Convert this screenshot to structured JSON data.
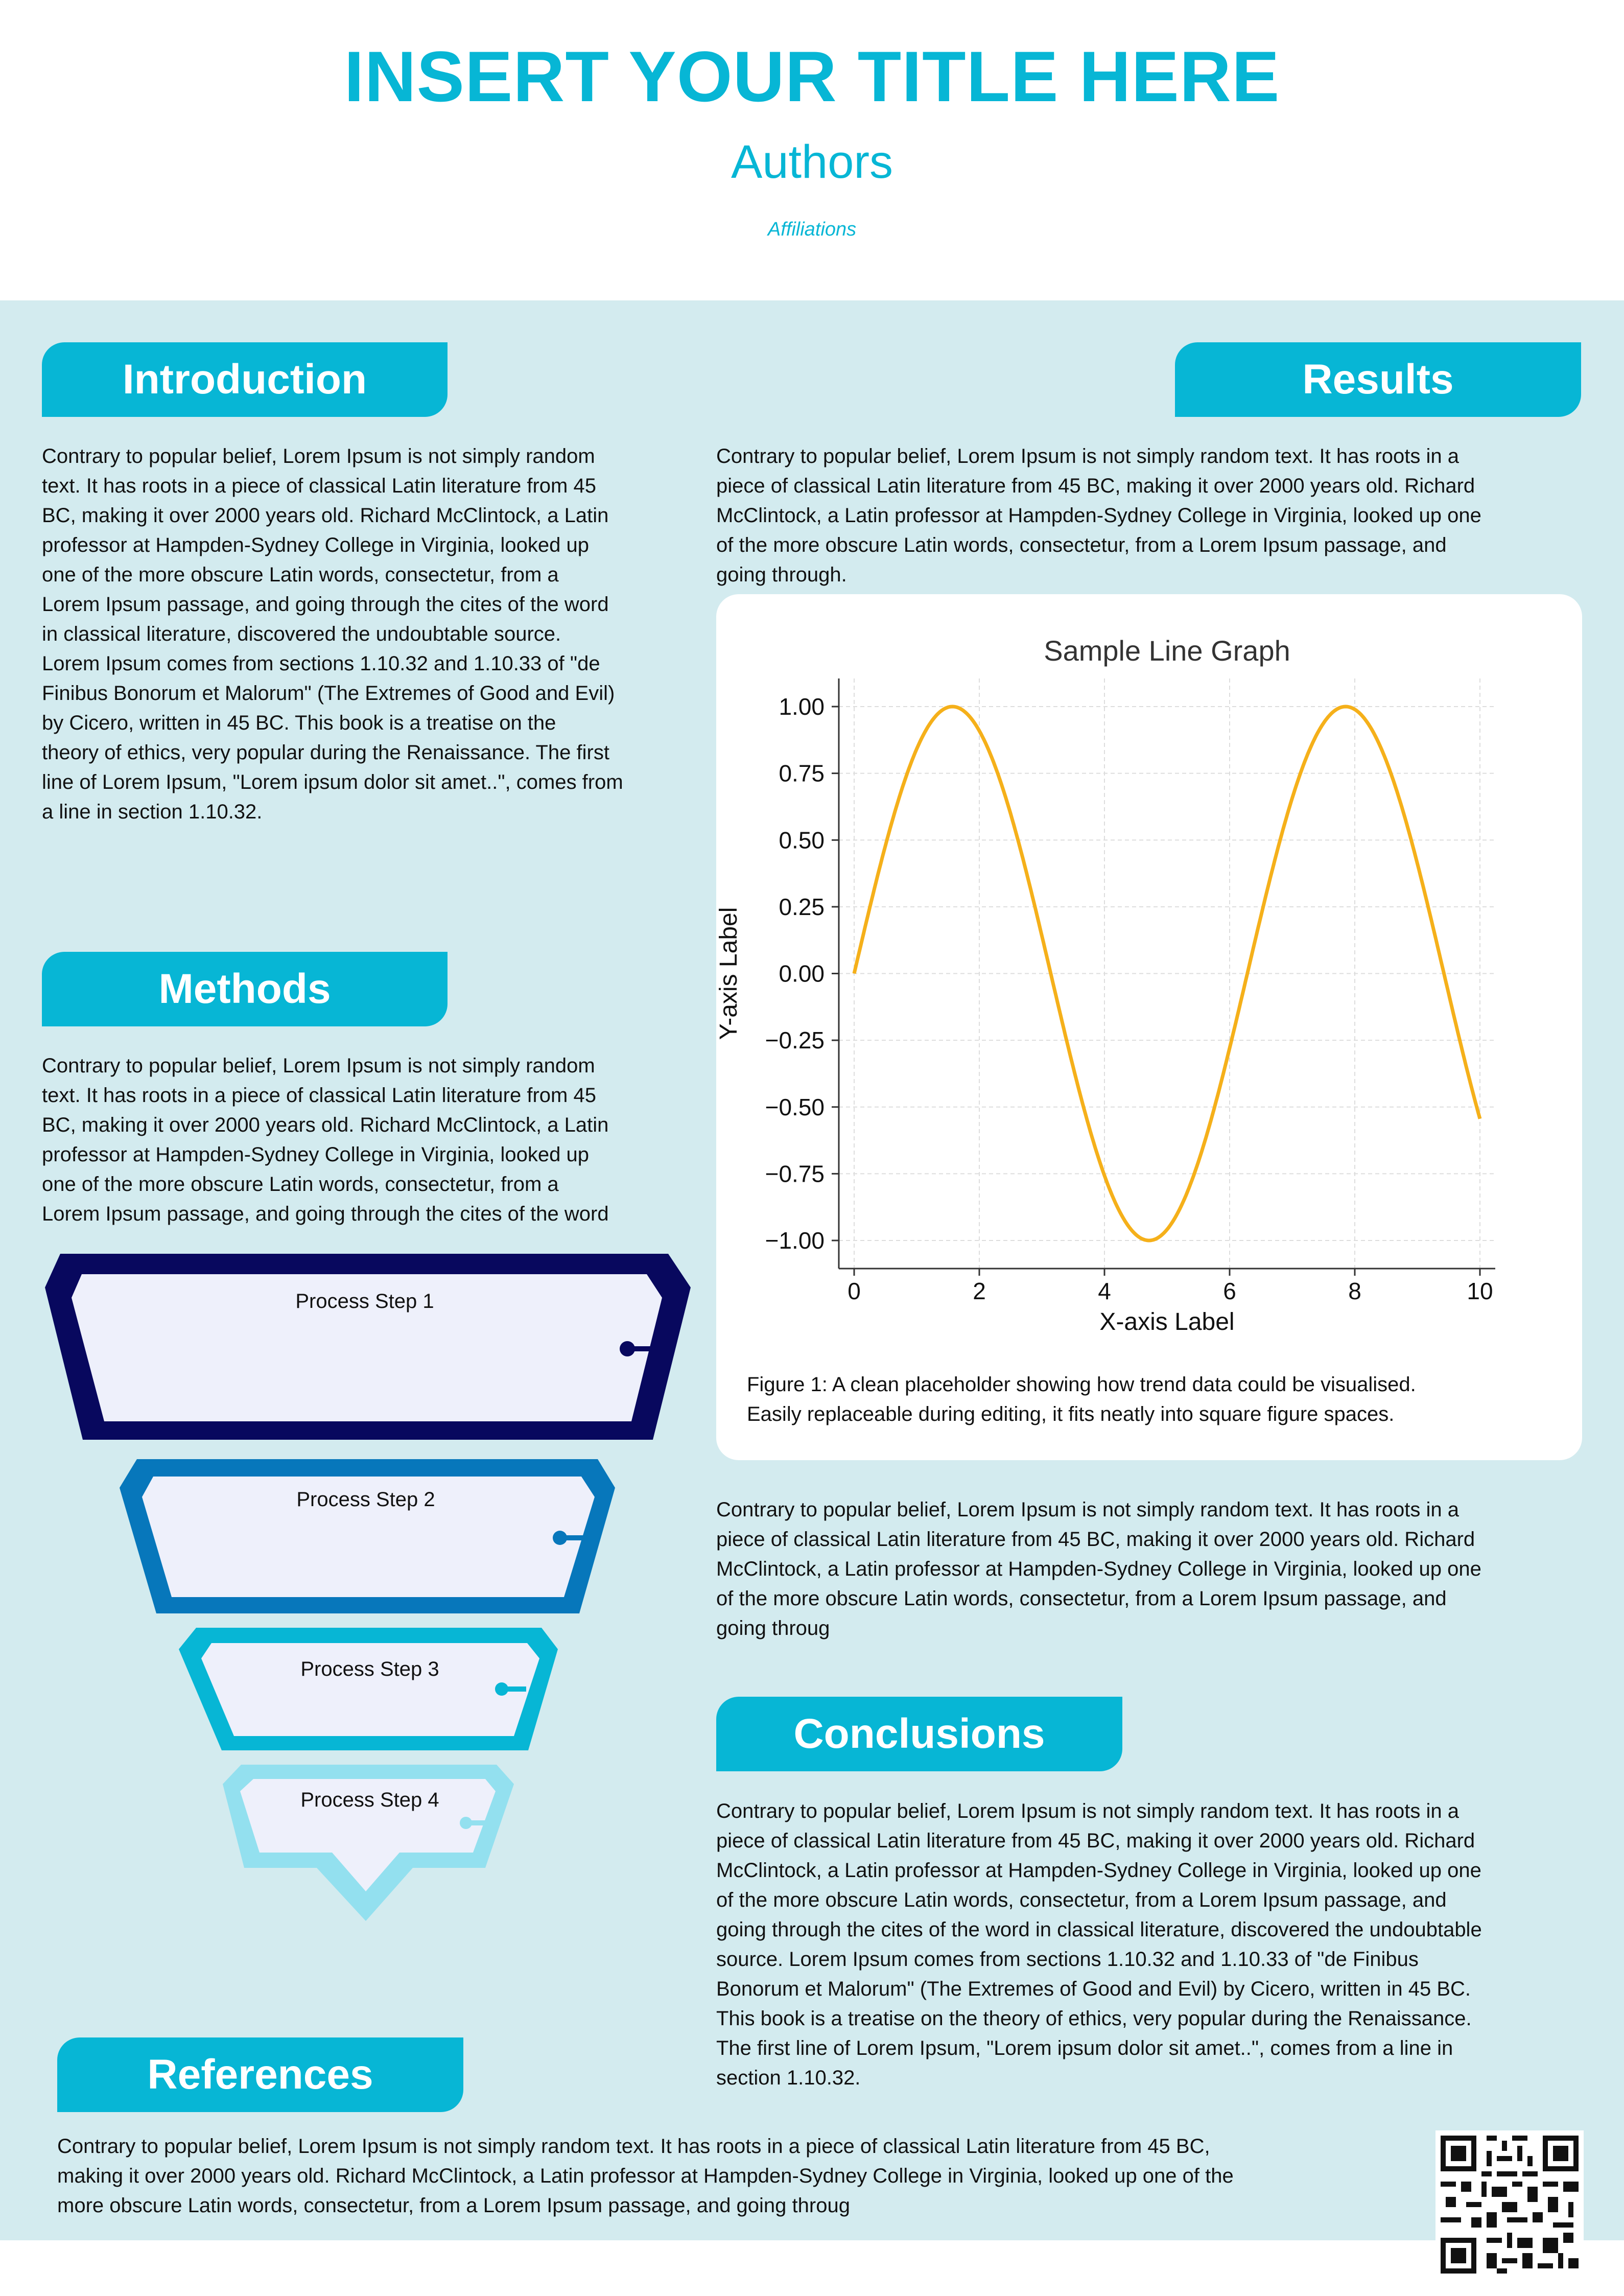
{
  "header": {
    "title": "INSERT YOUR TITLE HERE",
    "authors": "Authors",
    "affiliations": "Affiliations"
  },
  "colors": {
    "accent": "#07b6d5",
    "panel_bg": "#d3ebef",
    "funnel_step1": "#08085e",
    "funnel_step2": "#0777bb",
    "funnel_step3": "#07b6d5",
    "funnel_step4": "#93e0ef",
    "funnel_fill": "#eef0fb",
    "line": "#f5b01a"
  },
  "introduction": {
    "heading": "Introduction",
    "lines": [
      "Contrary to popular belief, Lorem Ipsum is not simply random",
      "text. It has roots in a piece of classical Latin literature from 45",
      "BC, making it over 2000 years old. Richard McClintock, a Latin",
      "professor at Hampden-Sydney College in Virginia, looked up",
      "one of the more obscure Latin words, consectetur, from a",
      "Lorem Ipsum passage, and going through the cites of the word",
      "in classical literature, discovered the undoubtable source.",
      "Lorem Ipsum comes from sections 1.10.32 and 1.10.33 of \"de",
      "Finibus Bonorum et Malorum\" (The Extremes of Good and Evil)",
      "by Cicero, written in 45 BC. This book is a treatise on the",
      "theory of ethics, very popular during the Renaissance. The first",
      "line of Lorem Ipsum, \"Lorem ipsum dolor sit amet..\", comes from",
      "a line in section 1.10.32."
    ]
  },
  "methods": {
    "heading": "Methods",
    "lines": [
      "Contrary to popular belief, Lorem Ipsum is not simply random",
      "text. It has roots in a piece of classical Latin literature from 45",
      "BC, making it over 2000 years old. Richard McClintock, a Latin",
      "professor at Hampden-Sydney College in Virginia, looked up",
      "one of the more obscure Latin words, consectetur, from a",
      "Lorem Ipsum passage, and going through the cites of the word"
    ],
    "steps": [
      "Process Step 1",
      "Process Step 2",
      "Process Step 3",
      "Process Step 4"
    ]
  },
  "results": {
    "heading": "Results",
    "lines_top": [
      "Contrary to popular belief, Lorem Ipsum is not simply random text. It has roots in a",
      "piece of classical Latin literature from 45 BC, making it over 2000 years old. Richard",
      "McClintock, a Latin professor at Hampden-Sydney College in Virginia, looked up one",
      "of the more obscure Latin words, consectetur, from a Lorem Ipsum passage, and",
      "going through."
    ],
    "caption_lines": [
      "Figure 1: A clean placeholder showing how trend data could be visualised.",
      "Easily replaceable during editing, it fits neatly into square figure spaces."
    ],
    "lines_bottom": [
      "Contrary to popular belief, Lorem Ipsum is not simply random text. It has roots in a",
      "piece of classical Latin literature from 45 BC, making it over 2000 years old. Richard",
      "McClintock, a Latin professor at Hampden-Sydney College in Virginia, looked up one",
      "of the more obscure Latin words, consectetur, from a Lorem Ipsum passage, and",
      "going throug"
    ]
  },
  "conclusions": {
    "heading": "Conclusions",
    "lines": [
      "Contrary to popular belief, Lorem Ipsum is not simply random text. It has roots in a",
      "piece of classical Latin literature from 45 BC, making it over 2000 years old. Richard",
      "McClintock, a Latin professor at Hampden-Sydney College in Virginia, looked up one",
      "of the more obscure Latin words, consectetur, from a Lorem Ipsum passage, and",
      "going through the cites of the word in classical literature, discovered the undoubtable",
      "source. Lorem Ipsum comes from sections 1.10.32 and 1.10.33 of \"de Finibus",
      "Bonorum et Malorum\" (The Extremes of Good and Evil) by Cicero, written in 45 BC.",
      "This book is a treatise on the theory of ethics, very popular during the Renaissance.",
      "The first line of Lorem Ipsum, \"Lorem ipsum dolor sit amet..\", comes from a line in",
      "section 1.10.32."
    ]
  },
  "references": {
    "heading": "References",
    "lines": [
      "Contrary to popular belief, Lorem Ipsum is not simply random text. It has roots in a piece of classical Latin literature from 45 BC,",
      "making it over 2000 years old. Richard McClintock, a Latin professor at Hampden-Sydney College in Virginia, looked up one of the",
      "more obscure Latin words, consectetur, from a Lorem Ipsum passage, and going throug"
    ]
  },
  "chart_data": {
    "type": "line",
    "title": "Sample Line Graph",
    "xlabel": "X-axis Label",
    "ylabel": "Y-axis Label",
    "function": "y = sin(x)",
    "xlim": [
      0,
      10
    ],
    "ylim": [
      -1.0,
      1.0
    ],
    "x_ticks": [
      "0",
      "2",
      "4",
      "6",
      "8",
      "10"
    ],
    "y_ticks": [
      "1.00",
      "0.75",
      "0.50",
      "0.25",
      "0.00",
      "−0.25",
      "−0.50",
      "−0.75",
      "−1.00"
    ],
    "grid": true,
    "series": [
      {
        "color": "#f5b01a",
        "x": [
          0,
          0.5,
          1,
          1.5,
          2,
          2.5,
          3,
          3.5,
          4,
          4.5,
          5,
          5.5,
          6,
          6.5,
          7,
          7.5,
          8,
          8.5,
          9,
          9.5,
          10
        ],
        "y": [
          0,
          0.479,
          0.841,
          0.997,
          0.909,
          0.598,
          0.141,
          -0.351,
          -0.757,
          -0.978,
          -0.959,
          -0.706,
          -0.279,
          0.215,
          0.657,
          0.938,
          0.989,
          0.798,
          0.412,
          -0.075,
          -0.544
        ]
      }
    ]
  }
}
